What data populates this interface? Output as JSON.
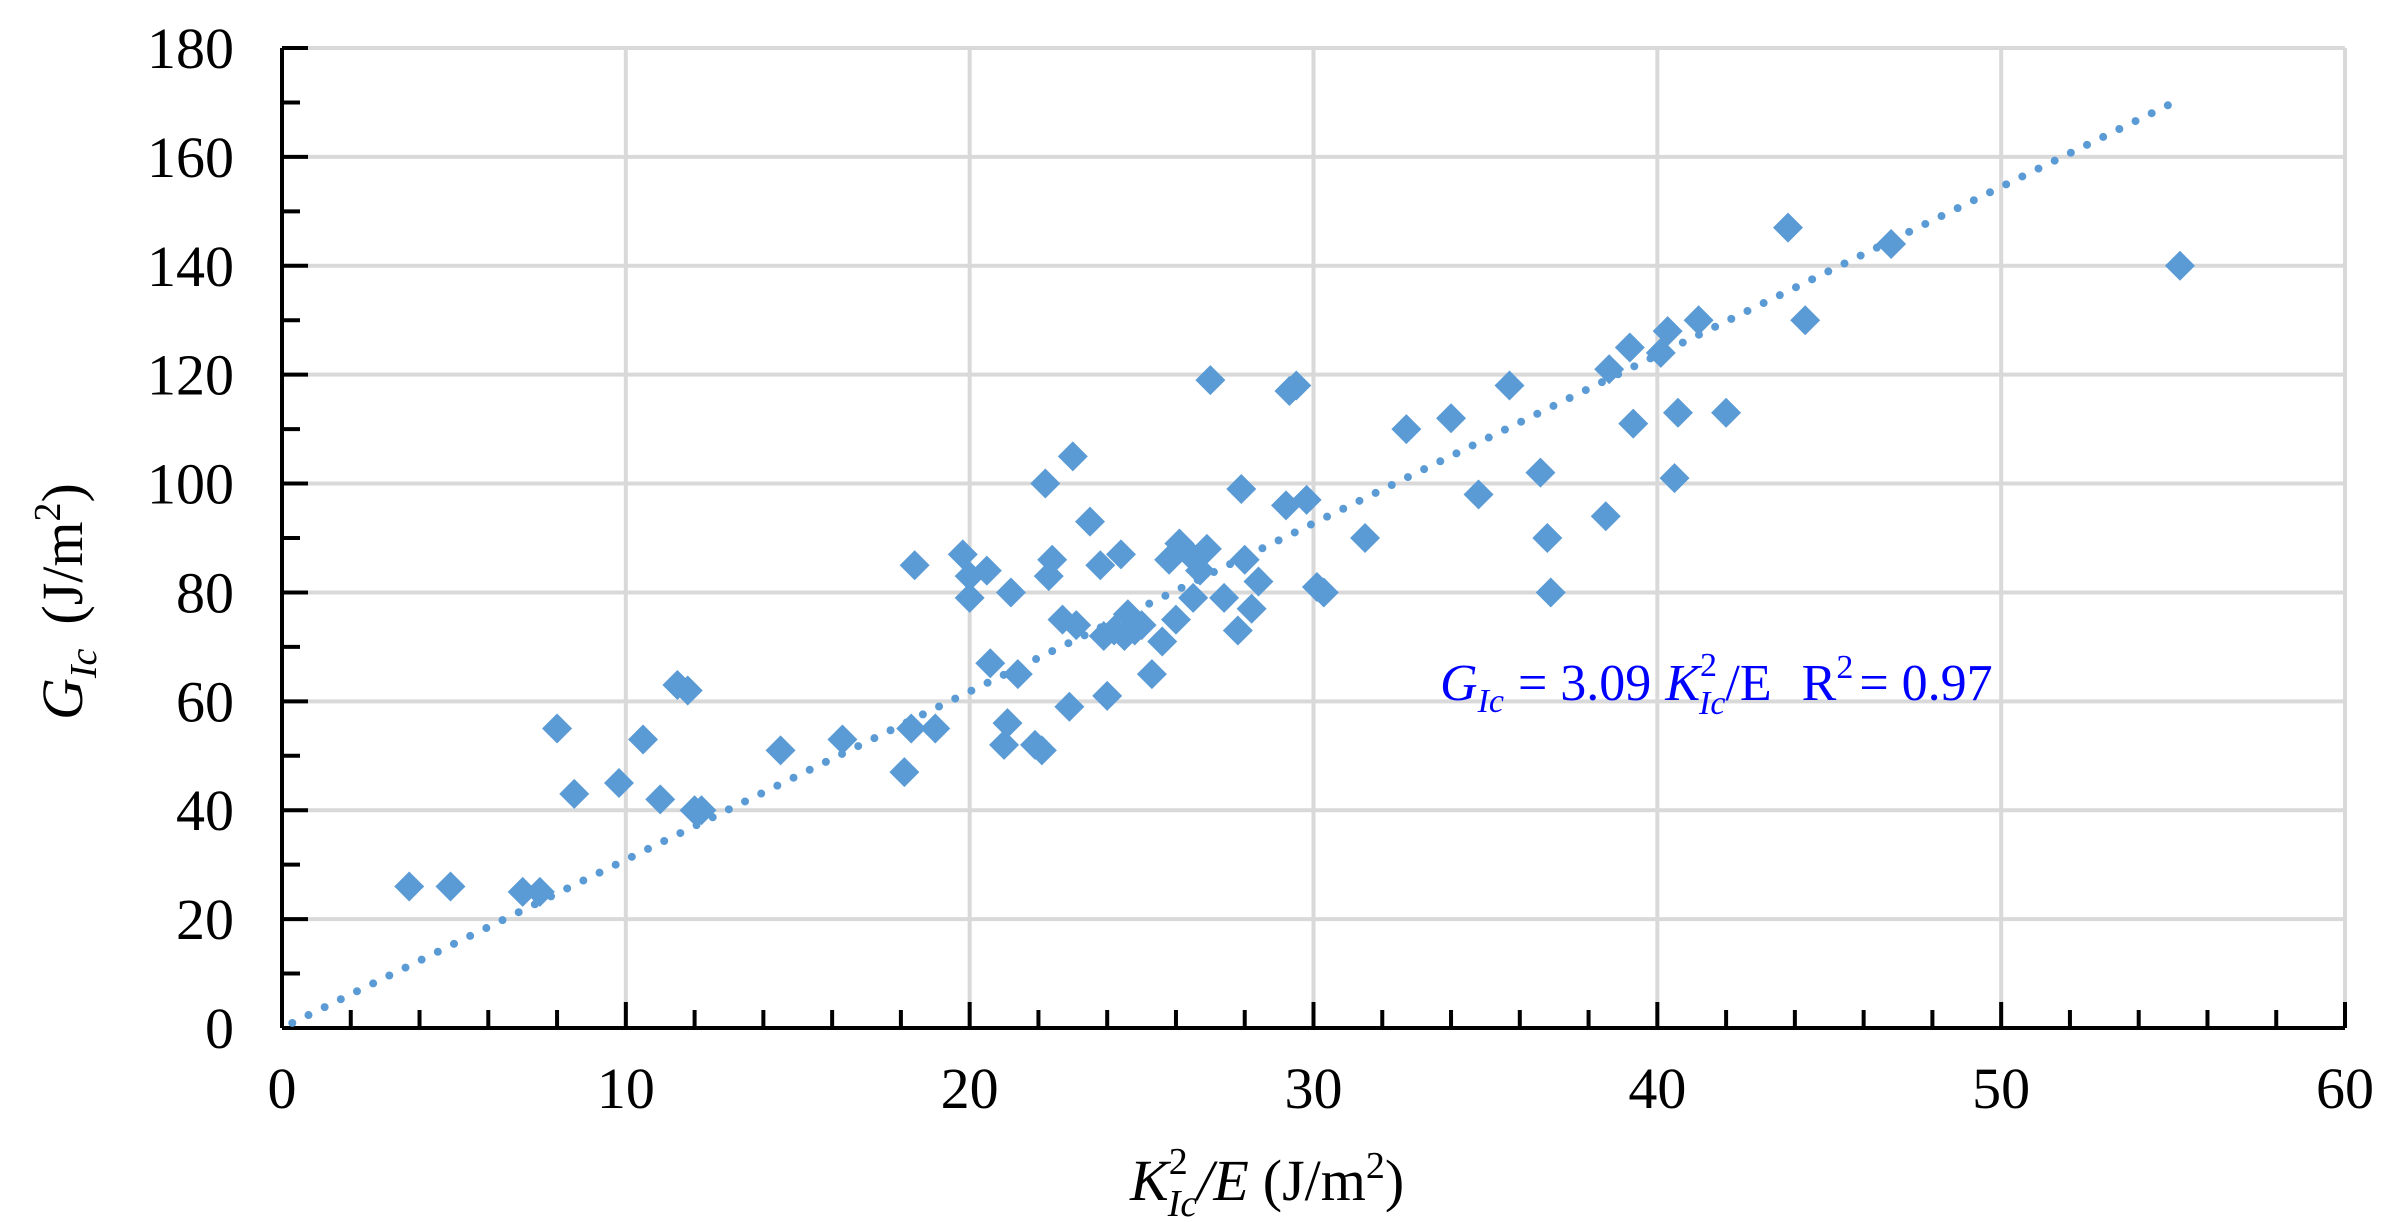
{
  "chart_data": {
    "type": "scatter",
    "title": "",
    "xlabel": {
      "k": "K",
      "sup": "2",
      "sub": "Ic",
      "rest": "/E",
      "units": "(J/m",
      "units_sup": "2",
      "units_close": ")"
    },
    "ylabel": {
      "g": "G",
      "sub": "Ic",
      "units": "(J/m",
      "units_sup": "2",
      "units_close": ")"
    },
    "xlim": [
      0,
      60
    ],
    "ylim": [
      0,
      180
    ],
    "xticks": [
      0,
      10,
      20,
      30,
      40,
      50,
      60
    ],
    "yticks": [
      0,
      20,
      40,
      60,
      80,
      100,
      120,
      140,
      160,
      180
    ],
    "grid": true,
    "marker_color": "#5b9bd5",
    "trend_color": "#5b9bd5",
    "annotation_color": "#0000ff",
    "series": [
      {
        "name": "data",
        "x": [
          3.7,
          4.9,
          7.0,
          7.5,
          8.0,
          8.5,
          9.8,
          10.5,
          11.0,
          11.5,
          11.8,
          12.0,
          12.2,
          14.5,
          16.3,
          18.1,
          18.3,
          18.4,
          19.0,
          19.8,
          20.0,
          20.0,
          20.5,
          20.6,
          21.0,
          21.1,
          21.2,
          21.4,
          21.9,
          22.1,
          22.2,
          22.3,
          22.4,
          22.7,
          22.9,
          23.0,
          23.1,
          23.5,
          23.8,
          23.9,
          24.0,
          24.2,
          24.4,
          24.5,
          24.6,
          24.8,
          25.0,
          25.3,
          25.6,
          25.8,
          26.0,
          26.1,
          26.4,
          26.5,
          26.7,
          26.9,
          27.0,
          27.4,
          27.8,
          27.9,
          28.0,
          28.2,
          28.4,
          29.2,
          29.3,
          29.5,
          29.8,
          30.1,
          30.3,
          31.5,
          32.7,
          34.0,
          34.8,
          35.7,
          36.6,
          36.8,
          36.9,
          38.5,
          38.6,
          39.2,
          39.3,
          40.1,
          40.3,
          40.5,
          40.6,
          41.2,
          42.0,
          43.8,
          44.3,
          46.8,
          55.2
        ],
        "y": [
          26,
          26,
          25,
          25,
          55,
          43,
          45,
          53,
          42,
          63,
          62,
          40,
          40,
          51,
          53,
          47,
          55,
          85,
          55,
          87,
          83,
          79,
          84,
          67,
          52,
          56,
          80,
          65,
          52,
          51,
          100,
          83,
          86,
          75,
          59,
          105,
          74,
          93,
          85,
          72,
          61,
          73,
          87,
          72,
          76,
          73,
          74,
          65,
          71,
          86,
          75,
          89,
          87,
          79,
          84,
          88,
          119,
          79,
          73,
          99,
          86,
          77,
          82,
          96,
          117,
          118,
          97,
          81,
          80,
          90,
          110,
          112,
          98,
          118,
          102,
          90,
          80,
          94,
          121,
          125,
          111,
          124,
          128,
          101,
          113,
          130,
          113,
          147,
          130,
          144,
          140
        ]
      }
    ],
    "trendline": {
      "x": [
        0.3,
        55
      ],
      "slope": 3.09,
      "intercept": 0,
      "style": "dotted"
    },
    "annotation": {
      "lhs_g": "G",
      "lhs_sub": "Ic",
      "eq": "= 3.09",
      "k": "K",
      "k_sup": "2",
      "k_sub": "Ic",
      "rest": "/E",
      "r2_label": "R",
      "r2_sup": "2",
      "r2_value": "= 0.97"
    }
  }
}
